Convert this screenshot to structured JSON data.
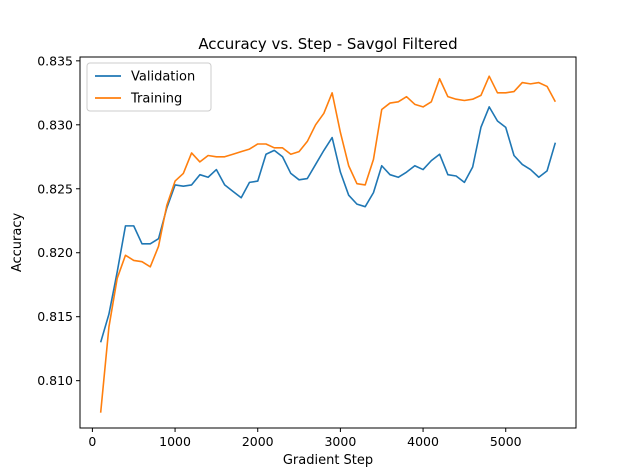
{
  "chart_data": {
    "type": "line",
    "title": "Accuracy vs. Step - Savgol Filtered",
    "xlabel": "Gradient Step",
    "ylabel": "Accuracy",
    "xlim": [
      -150,
      5850
    ],
    "ylim": [
      0.8063,
      0.8353
    ],
    "xticks": [
      0,
      1000,
      2000,
      3000,
      4000,
      5000
    ],
    "yticks": [
      0.81,
      0.815,
      0.82,
      0.825,
      0.83,
      0.835
    ],
    "ytick_labels": [
      "0.810",
      "0.815",
      "0.820",
      "0.825",
      "0.830",
      "0.835"
    ],
    "grid": false,
    "legend_position": "upper-left",
    "x": [
      100,
      200,
      300,
      400,
      500,
      600,
      700,
      800,
      900,
      1000,
      1100,
      1200,
      1300,
      1400,
      1500,
      1600,
      1700,
      1800,
      1900,
      2000,
      2100,
      2200,
      2300,
      2400,
      2500,
      2600,
      2700,
      2800,
      2900,
      3000,
      3100,
      3200,
      3300,
      3400,
      3500,
      3600,
      3700,
      3800,
      3900,
      4000,
      4100,
      4200,
      4300,
      4400,
      4500,
      4600,
      4700,
      4800,
      4900,
      5000,
      5100,
      5200,
      5300,
      5400,
      5500,
      5600
    ],
    "series": [
      {
        "name": "Validation",
        "color": "#1f77b4",
        "values": [
          0.813,
          0.8152,
          0.8185,
          0.8221,
          0.8221,
          0.8207,
          0.8207,
          0.8211,
          0.8235,
          0.8253,
          0.8252,
          0.8253,
          0.8261,
          0.8259,
          0.8265,
          0.8253,
          0.8248,
          0.8243,
          0.8255,
          0.8256,
          0.8277,
          0.828,
          0.8275,
          0.8262,
          0.8257,
          0.8258,
          0.8269,
          0.828,
          0.829,
          0.8263,
          0.8245,
          0.8238,
          0.8236,
          0.8247,
          0.8268,
          0.8261,
          0.8259,
          0.8263,
          0.8268,
          0.8265,
          0.8272,
          0.8277,
          0.8261,
          0.826,
          0.8255,
          0.8267,
          0.8298,
          0.8314,
          0.8303,
          0.8298,
          0.8276,
          0.8269,
          0.8265,
          0.8259,
          0.8264,
          0.8286
        ]
      },
      {
        "name": "Training",
        "color": "#ff7f0e",
        "values": [
          0.8075,
          0.8142,
          0.818,
          0.8198,
          0.8194,
          0.8193,
          0.8189,
          0.8205,
          0.8237,
          0.8256,
          0.8262,
          0.8278,
          0.8271,
          0.8276,
          0.8275,
          0.8275,
          0.8277,
          0.8279,
          0.8281,
          0.8285,
          0.8285,
          0.8282,
          0.8282,
          0.8277,
          0.8279,
          0.8287,
          0.83,
          0.8309,
          0.8325,
          0.8294,
          0.8268,
          0.8254,
          0.8253,
          0.8273,
          0.8312,
          0.8317,
          0.8318,
          0.8322,
          0.8316,
          0.8314,
          0.8318,
          0.8336,
          0.8322,
          0.832,
          0.8319,
          0.832,
          0.8323,
          0.8338,
          0.8325,
          0.8325,
          0.8326,
          0.8333,
          0.8332,
          0.8333,
          0.833,
          0.8318
        ]
      }
    ]
  }
}
